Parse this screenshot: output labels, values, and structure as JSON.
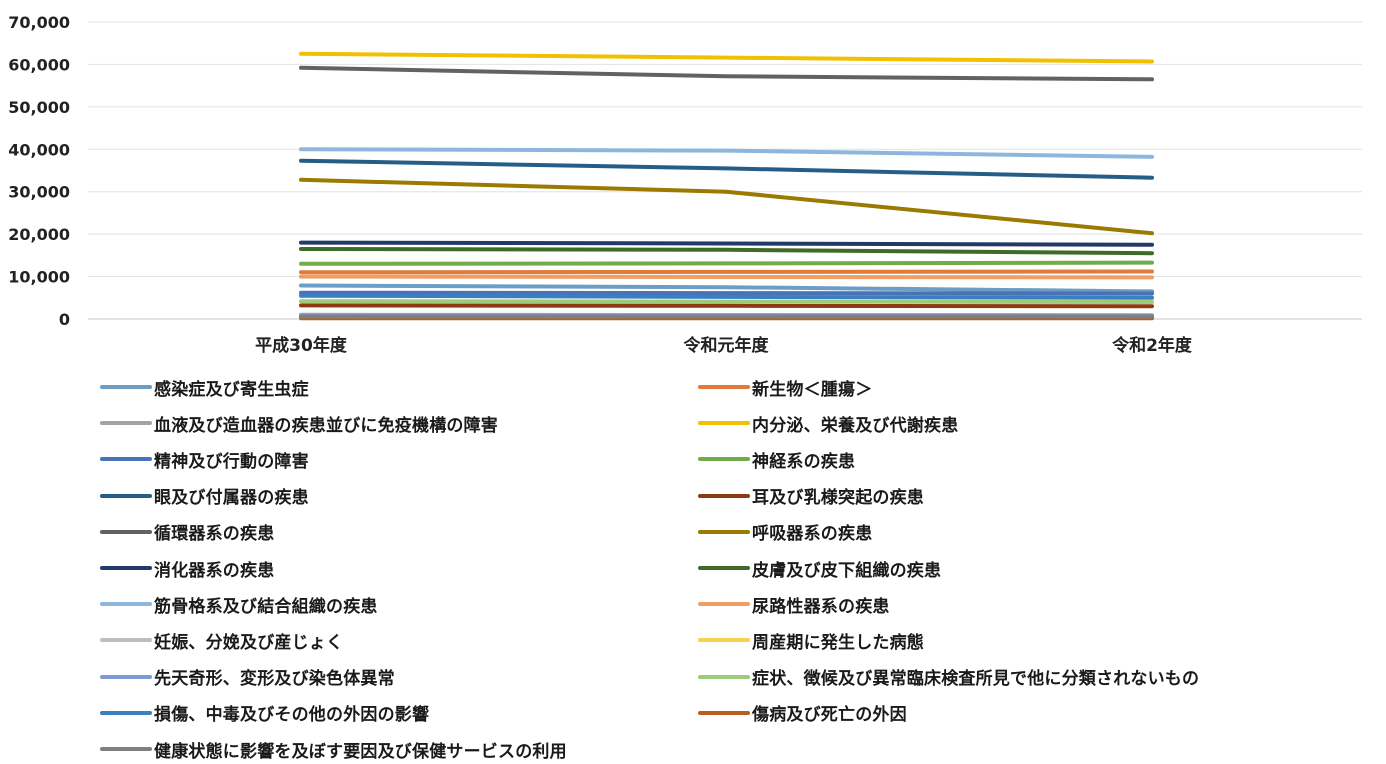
{
  "chart_data": {
    "type": "line",
    "categories": [
      "平成30年度",
      "令和元年度",
      "令和2年度"
    ],
    "ylim": [
      0,
      70000
    ],
    "yticks": [
      "0",
      "10,000",
      "20,000",
      "30,000",
      "40,000",
      "50,000",
      "60,000",
      "70,000"
    ],
    "grid": true,
    "legend_position": "bottom",
    "series": [
      {
        "name": "感染症及び寄生虫症",
        "color": "#6a9ec6",
        "values": [
          7900,
          7500,
          6500
        ]
      },
      {
        "name": "新生物＜腫瘍＞",
        "color": "#e07b39",
        "values": [
          11000,
          11100,
          11200
        ]
      },
      {
        "name": "血液及び造血器の疾患並びに免疫機構の障害",
        "color": "#a3a3a3",
        "values": [
          1000,
          950,
          900
        ]
      },
      {
        "name": "内分泌、栄養及び代謝疾患",
        "color": "#f2c000",
        "values": [
          62500,
          61600,
          60700
        ]
      },
      {
        "name": "精神及び行動の障害",
        "color": "#4a72b8",
        "values": [
          6200,
          6100,
          6000
        ]
      },
      {
        "name": "神経系の疾患",
        "color": "#72ab4c",
        "values": [
          13000,
          13100,
          13300
        ]
      },
      {
        "name": "眼及び付属器の疾患",
        "color": "#255d86",
        "values": [
          37300,
          35500,
          33300
        ]
      },
      {
        "name": "耳及び乳様突起の疾患",
        "color": "#8c3b10",
        "values": [
          3200,
          3100,
          3000
        ]
      },
      {
        "name": "循環器系の疾患",
        "color": "#626262",
        "values": [
          59200,
          57200,
          56500
        ]
      },
      {
        "name": "呼吸器系の疾患",
        "color": "#9a7a00",
        "values": [
          32800,
          30000,
          20200
        ]
      },
      {
        "name": "消化器系の疾患",
        "color": "#233a68",
        "values": [
          18000,
          17800,
          17500
        ]
      },
      {
        "name": "皮膚及び皮下組織の疾患",
        "color": "#3f6a2a",
        "values": [
          16500,
          16300,
          15500
        ]
      },
      {
        "name": "筋骨格系及び結合組織の疾患",
        "color": "#8eb6dc",
        "values": [
          40000,
          39700,
          38200
        ]
      },
      {
        "name": "尿路性器系の疾患",
        "color": "#f09e63",
        "values": [
          10000,
          9900,
          9800
        ]
      },
      {
        "name": "妊娠、分娩及び産じょく",
        "color": "#bdbdbd",
        "values": [
          300,
          300,
          300
        ]
      },
      {
        "name": "周産期に発生した病態",
        "color": "#f7d24a",
        "values": [
          400,
          400,
          400
        ]
      },
      {
        "name": "先天奇形、変形及び染色体異常",
        "color": "#7b9bd4",
        "values": [
          800,
          800,
          800
        ]
      },
      {
        "name": "症状、徴候及び異常臨床検査所見で他に分類されないもの",
        "color": "#9ccb7a",
        "values": [
          4200,
          4100,
          4000
        ]
      },
      {
        "name": "損傷、中毒及びその他の外因の影響",
        "color": "#3c7fbf",
        "values": [
          5500,
          5200,
          5000
        ]
      },
      {
        "name": "傷病及び死亡の外因",
        "color": "#b8611f",
        "values": [
          200,
          200,
          200
        ]
      },
      {
        "name": "健康状態に影響を及ぼす要因及び保健サービスの利用",
        "color": "#7f7f7f",
        "values": [
          600,
          600,
          600
        ]
      }
    ]
  }
}
